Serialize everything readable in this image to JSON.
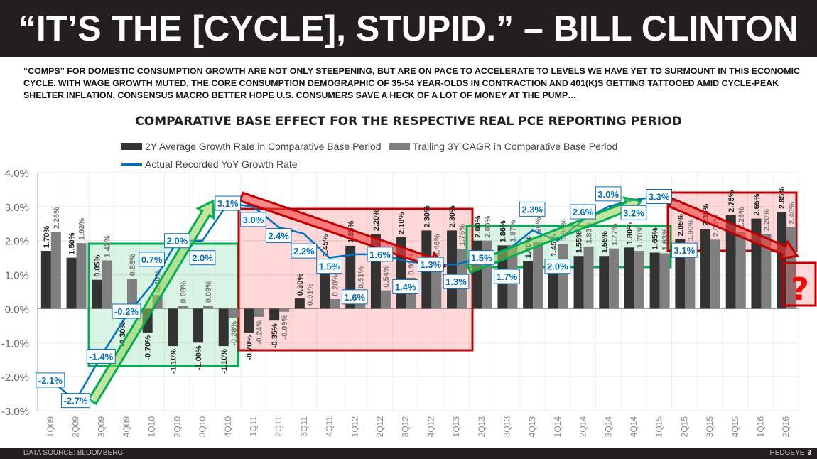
{
  "header": {
    "title": "“IT’S THE [CYCLE], STUPID.” – BILL CLINTON"
  },
  "intro": "“COMPS” FOR DOMESTIC CONSUMPTION GROWTH ARE NOT ONLY STEEPENING, BUT ARE ON PACE TO ACCELERATE TO LEVELS WE HAVE YET TO SURMOUNT IN THIS ECONOMIC CYCLE. WITH WAGE GROWTH MUTED, THE CORE CONSUMPTION DEMOGRAPHIC OF 35-54 YEAR-OLDS IN CONTRACTION AND 401(K)S GETTING TATTOOED AMID CYCLE-PEAK SHELTER INFLATION, CONSENSUS MACRO BETTER HOPE U.S. CONSUMERS SAVE A HECK OF A LOT OF MONEY AT THE PUMP…",
  "footer": {
    "source": "DATA SOURCE: BLOOMBERG",
    "brand": "HEDGEYE",
    "page": "3"
  },
  "chart_data": {
    "type": "bar",
    "title": "COMPARATIVE BASE EFFECT FOR THE RESPECTIVE REAL PCE REPORTING PERIOD",
    "legend_placement": "top",
    "grid": true,
    "ylim": [
      -3.0,
      4.0
    ],
    "yticks": [
      "4.0%",
      "3.0%",
      "2.0%",
      "1.0%",
      "0.0%",
      "-1.0%",
      "-2.0%",
      "-3.0%"
    ],
    "categories": [
      "1Q09",
      "2Q09",
      "3Q09",
      "4Q09",
      "1Q10",
      "2Q10",
      "3Q10",
      "4Q10",
      "1Q11",
      "2Q11",
      "3Q11",
      "4Q11",
      "1Q12",
      "2Q12",
      "3Q12",
      "4Q12",
      "1Q13",
      "2Q13",
      "3Q13",
      "4Q13",
      "1Q14",
      "2Q14",
      "3Q14",
      "4Q14",
      "1Q15",
      "2Q15",
      "3Q15",
      "4Q15",
      "1Q16",
      "2Q16"
    ],
    "series": [
      {
        "name": "2Y Average Growth Rate in Comparative Base Period",
        "type": "bar",
        "color": "#333333",
        "values": [
          1.7,
          1.5,
          0.85,
          -0.3,
          -0.7,
          -1.1,
          -1.0,
          -1.1,
          -0.7,
          -0.35,
          0.3,
          1.45,
          1.85,
          2.2,
          2.1,
          2.3,
          2.3,
          2.0,
          1.86,
          1.4,
          1.45,
          1.55,
          1.55,
          1.8,
          1.65,
          2.05,
          2.35,
          2.75,
          2.65,
          2.85
        ]
      },
      {
        "name": "Trailing 3Y CAGR in Comparative Base Period",
        "type": "bar",
        "color": "#7f7f7f",
        "values": [
          2.26,
          1.93,
          1.42,
          0.88,
          0.4,
          0.08,
          0.09,
          -0.28,
          -0.24,
          -0.09,
          0.01,
          0.28,
          0.51,
          0.54,
          0.91,
          1.46,
          1.76,
          2.0,
          1.87,
          1.96,
          1.9,
          1.83,
          1.77,
          1.7,
          1.63,
          1.9,
          2.03,
          2.26,
          2.2,
          2.4
        ]
      },
      {
        "name": "Actual Recorded YoY Growth Rate",
        "type": "line",
        "color": "#0070c0",
        "values": [
          -2.1,
          -2.7,
          -1.4,
          -0.2,
          0.7,
          2.0,
          2.0,
          3.1,
          3.0,
          2.4,
          2.2,
          1.5,
          1.6,
          1.6,
          1.4,
          1.3,
          1.3,
          1.5,
          1.7,
          2.3,
          2.0,
          2.6,
          3.0,
          3.2,
          3.3,
          3.1,
          null,
          null,
          null,
          null
        ]
      }
    ],
    "annotations": {
      "question_mark": "?",
      "green": "#00b050",
      "red": "#c00000"
    }
  }
}
